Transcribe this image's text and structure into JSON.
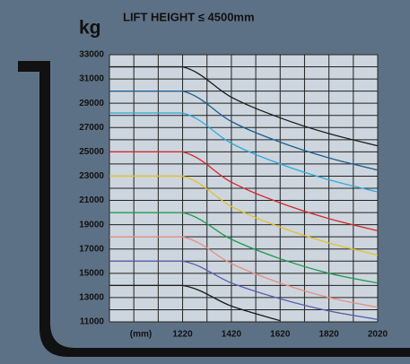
{
  "chart_data": {
    "type": "line",
    "title": "LIFT HEIGHT ≤ 4500mm",
    "y_label": "kg",
    "x_label": "(mm)",
    "x": [
      920,
      1220,
      1420,
      1620,
      1820,
      2020
    ],
    "xlim": [
      920,
      2020
    ],
    "xticks": [
      1220,
      1420,
      1620,
      1820,
      2020
    ],
    "xgrid": [
      920,
      1020,
      1120,
      1220,
      1320,
      1420,
      1520,
      1620,
      1720,
      1820,
      1920,
      2020
    ],
    "ylim": [
      11000,
      33000
    ],
    "yticks": [
      11000,
      13000,
      15000,
      17000,
      19000,
      21000,
      23000,
      25000,
      27000,
      29000,
      31000,
      33000
    ],
    "ygrid": [
      11000,
      12000,
      13000,
      14000,
      15000,
      16000,
      17000,
      18000,
      19000,
      20000,
      21000,
      22000,
      23000,
      24000,
      25000,
      26000,
      27000,
      28000,
      29000,
      30000,
      31000,
      32000,
      33000
    ],
    "grid": true,
    "series": [
      {
        "color": "#1a1a1a",
        "values": [
          32000,
          32000,
          29500,
          27800,
          26500,
          25500
        ]
      },
      {
        "color": "#1d5f8e",
        "values": [
          30000,
          30000,
          27500,
          25800,
          24500,
          23500
        ]
      },
      {
        "color": "#2ea9dc",
        "values": [
          28200,
          28200,
          25700,
          24000,
          22700,
          21700
        ]
      },
      {
        "color": "#d8262a",
        "values": [
          25000,
          25000,
          22500,
          20800,
          19500,
          18500
        ]
      },
      {
        "color": "#e3c22a",
        "values": [
          23000,
          23000,
          20500,
          18800,
          17500,
          16500
        ]
      },
      {
        "color": "#1e9a4c",
        "values": [
          20000,
          20000,
          17800,
          16200,
          15000,
          14200
        ]
      },
      {
        "color": "#e58f86",
        "values": [
          18000,
          18000,
          15800,
          14200,
          13000,
          12200
        ]
      },
      {
        "color": "#5b5fb0",
        "values": [
          16000,
          16000,
          14200,
          12900,
          11900,
          11200
        ]
      },
      {
        "color": "#1a1a1a",
        "values": [
          14000,
          14000,
          12300,
          11100,
          null,
          null
        ]
      }
    ]
  }
}
